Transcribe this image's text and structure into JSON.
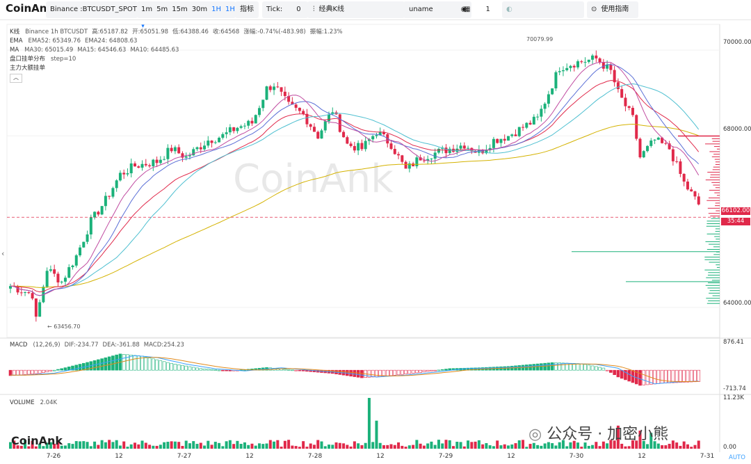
{
  "toolbar": {
    "logo": "CoinAnk",
    "symbol": "Binance :BTCUSDT_SPOT",
    "intervals": [
      "1m",
      "5m",
      "15m",
      "30m",
      "1H"
    ],
    "active_interval": "1H",
    "indicator_btn": "指标",
    "tick_label": "Tick:",
    "tick_value": "0",
    "kline_btn": "经典K线",
    "user": "uname",
    "count": "1",
    "help_btn": "使用指南"
  },
  "legend": {
    "kline": {
      "label": "K线",
      "exchange": "Binance 1h BTCUSDT",
      "high": "高:65187.82",
      "open": "开:65051.98",
      "low": "低:64388.46",
      "close": "收:64568",
      "change": "涨幅:-0.74%(-483.98)",
      "amp": "振幅:1.23%"
    },
    "ema": {
      "label": "EMA",
      "ema52": "EMA52: 65349.76",
      "ema24": "EMA24: 64808.63"
    },
    "ma": {
      "label": "MA",
      "ma30": "MA30: 65015.49",
      "ma15": "MA15: 64546.63",
      "ma10": "MA10: 64485.63"
    },
    "order_dist": "盘口挂单分布",
    "order_step": "step=10",
    "big_orders": "主力大额挂单",
    "macd": {
      "label": "MACD",
      "params": "(12,26,9)",
      "dif": "DIF:-234.77",
      "dea": "DEA:-361.88",
      "macd": "MACD:254.23"
    },
    "volume": {
      "label": "VOLUME",
      "value": "2.04K"
    }
  },
  "axis": {
    "price_ticks": [
      "70000.00",
      "68000.00",
      "64000.00"
    ],
    "current_price": "66102.00",
    "countdown": "35:44",
    "macd_top": "876.41",
    "macd_bottom": "-713.74",
    "vol_top": "11.23K",
    "vol_bottom": "0.00",
    "auto_btn": "AUTO"
  },
  "annotations": {
    "high_label": "70079.99",
    "low_label": "63456.70"
  },
  "watermark": "CoinAnk",
  "bottom_logo": "CoinAnk",
  "wechat_caption": "公众号 · 加密小熊",
  "chart_data": {
    "type": "candlestick",
    "x_ticks": [
      "7-26",
      "12",
      "7-27",
      "12",
      "7-28",
      "12",
      "7-29",
      "12",
      "7-30",
      "12",
      "7-31"
    ],
    "ylim": [
      63300,
      70600
    ],
    "current_price": 66102,
    "colors": {
      "up": "#1bb17a",
      "down": "#e0294a",
      "ema52": "#d4b200",
      "ema24": "#e0294a",
      "ma30": "#4dbfd0",
      "ma15": "#e08a1c",
      "ma10": "#c04ba0"
    },
    "key_levels": {
      "high": 70079.99,
      "low": 63456.7
    },
    "price_waypoints": [
      [
        0,
        64500
      ],
      [
        6,
        64300
      ],
      [
        7,
        63700
      ],
      [
        10,
        64900
      ],
      [
        14,
        64600
      ],
      [
        18,
        65200
      ],
      [
        22,
        66000
      ],
      [
        26,
        66500
      ],
      [
        30,
        67100
      ],
      [
        34,
        67300
      ],
      [
        40,
        67400
      ],
      [
        44,
        67700
      ],
      [
        48,
        67500
      ],
      [
        54,
        67900
      ],
      [
        58,
        68000
      ],
      [
        62,
        68200
      ],
      [
        66,
        68300
      ],
      [
        70,
        69100
      ],
      [
        72,
        69200
      ],
      [
        76,
        68700
      ],
      [
        80,
        68500
      ],
      [
        84,
        68000
      ],
      [
        88,
        68600
      ],
      [
        92,
        67800
      ],
      [
        96,
        67700
      ],
      [
        100,
        68100
      ],
      [
        104,
        67800
      ],
      [
        108,
        67200
      ],
      [
        112,
        67500
      ],
      [
        116,
        67600
      ],
      [
        120,
        67700
      ],
      [
        124,
        67800
      ],
      [
        128,
        67600
      ],
      [
        132,
        67900
      ],
      [
        136,
        68000
      ],
      [
        140,
        68200
      ],
      [
        144,
        68400
      ],
      [
        150,
        69600
      ],
      [
        154,
        69700
      ],
      [
        160,
        69800
      ],
      [
        164,
        69500
      ],
      [
        166,
        69000
      ],
      [
        170,
        68400
      ],
      [
        172,
        67500
      ],
      [
        176,
        67900
      ],
      [
        180,
        67700
      ],
      [
        184,
        66900
      ],
      [
        188,
        66400
      ]
    ],
    "macd_waypoints": [
      [
        0,
        -200
      ],
      [
        8,
        -120
      ],
      [
        14,
        60
      ],
      [
        22,
        320
      ],
      [
        30,
        600
      ],
      [
        36,
        520
      ],
      [
        44,
        250
      ],
      [
        52,
        60
      ],
      [
        60,
        -30
      ],
      [
        70,
        100
      ],
      [
        80,
        -30
      ],
      [
        88,
        -120
      ],
      [
        96,
        -280
      ],
      [
        104,
        -200
      ],
      [
        112,
        -80
      ],
      [
        120,
        60
      ],
      [
        128,
        90
      ],
      [
        136,
        140
      ],
      [
        148,
        280
      ],
      [
        156,
        240
      ],
      [
        162,
        80
      ],
      [
        166,
        -250
      ],
      [
        172,
        -560
      ],
      [
        178,
        -480
      ],
      [
        188,
        -420
      ]
    ],
    "volume_spikes": [
      [
        98,
        11.23
      ],
      [
        100,
        6.2
      ],
      [
        166,
        5.1
      ],
      [
        172,
        4.0
      ],
      [
        175,
        3.5
      ]
    ]
  }
}
